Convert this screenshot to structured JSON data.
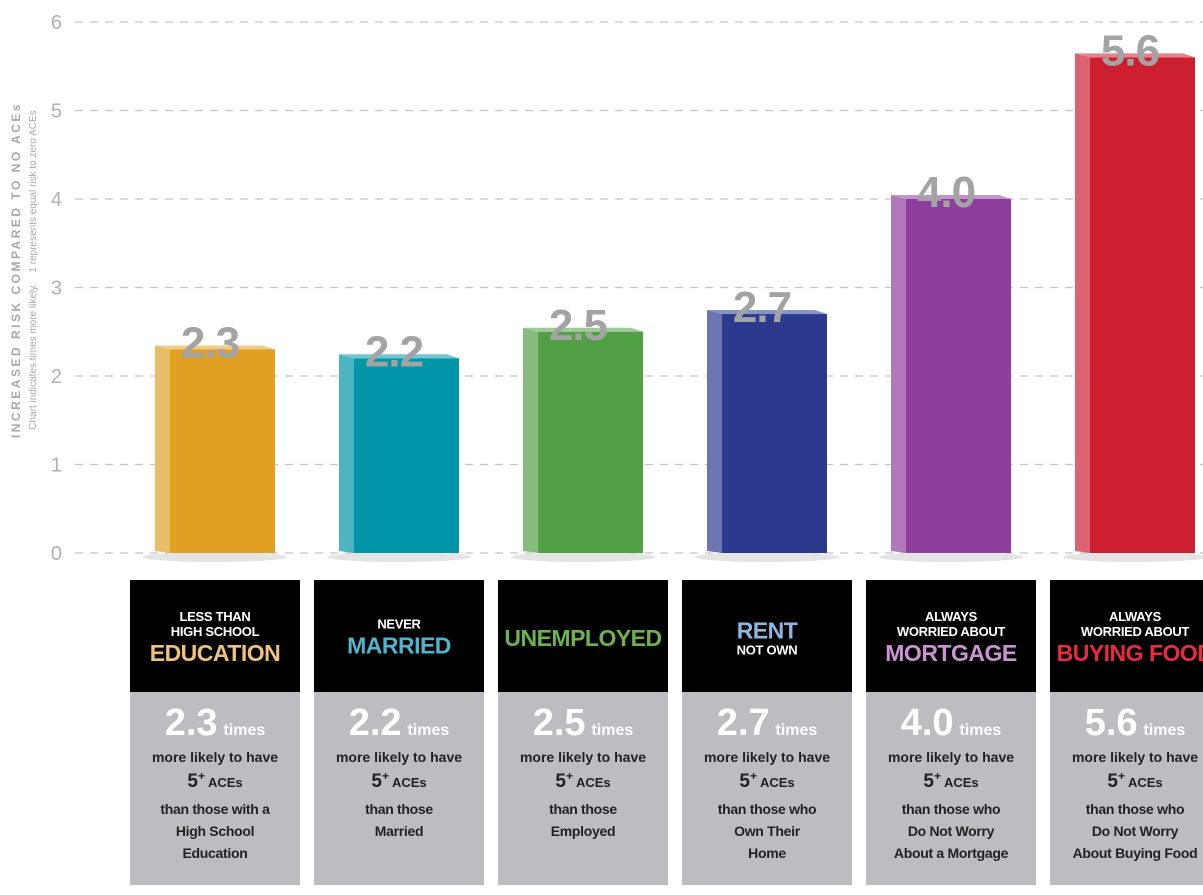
{
  "chart_data": {
    "type": "bar",
    "ylabel": "INCREASED RISK COMPARED TO NO ACEs",
    "subtitle": "Chart indicates times more likely.    1 represents equal risk to zero ACEs",
    "ylim": [
      0,
      6
    ],
    "yticks": [
      0,
      1,
      2,
      3,
      4,
      5,
      6
    ],
    "grid": true,
    "values": [
      2.3,
      2.2,
      2.5,
      2.7,
      4.0,
      5.6
    ],
    "value_labels": [
      "2.3",
      "2.2",
      "2.5",
      "2.7",
      "4.0",
      "5.6"
    ],
    "colors": [
      "#e0a024",
      "#0095a8",
      "#52a045",
      "#2b3a8e",
      "#8e3e9c",
      "#cc2030"
    ],
    "categories": [
      [
        {
          "text": "LESS THAN"
        },
        {
          "text": "HIGH SCHOOL"
        },
        {
          "text": "EDUCATION",
          "big": true,
          "color": "#eec27e"
        }
      ],
      [
        {
          "text": "NEVER"
        },
        {
          "text": "MARRIED",
          "big": true,
          "color": "#4fb5ca"
        }
      ],
      [
        {
          "text": "UNEMPLOYED",
          "big": true,
          "color": "#6cb24e"
        }
      ],
      [
        {
          "text": "RENT",
          "big": true,
          "color": "#8fb6e2"
        },
        {
          "text": "NOT OWN"
        }
      ],
      [
        {
          "text": "ALWAYS"
        },
        {
          "text": "WORRIED ABOUT"
        },
        {
          "text": "MORTGAGE",
          "big": true,
          "color": "#cc92d4"
        }
      ],
      [
        {
          "text": "ALWAYS"
        },
        {
          "text": "WORRIED ABOUT"
        },
        {
          "text": "BUYING FOOD",
          "big": true,
          "color": "#ec2a3e"
        }
      ]
    ],
    "callout": {
      "times": "times",
      "likely": "more likely to have",
      "aces": [
        "5",
        "+",
        "ACEs"
      ]
    },
    "comparisons": [
      [
        "than those with a",
        "High School",
        "Education"
      ],
      [
        "than those",
        "Married"
      ],
      [
        "than those",
        "Employed"
      ],
      [
        "than those who",
        "Own Their",
        "Home"
      ],
      [
        "than those who",
        "Do Not Worry",
        "About a Mortgage"
      ],
      [
        "than those who",
        "Do Not Worry",
        "About Buying Food"
      ]
    ]
  }
}
